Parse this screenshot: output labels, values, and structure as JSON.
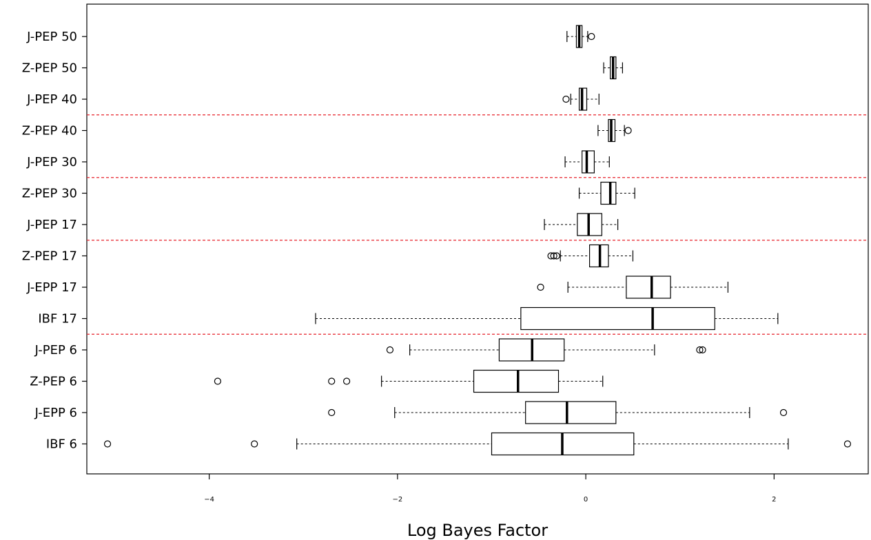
{
  "chart_data": {
    "type": "boxplot",
    "orientation": "horizontal",
    "xlabel": "Log Bayes Factor",
    "xlim": [
      -5.3,
      3.0
    ],
    "xticks": [
      -4,
      -2,
      0,
      2
    ],
    "xtick_labels": [
      "−4",
      "−2",
      "0",
      "2"
    ],
    "separator_color": "#e8202a",
    "separators_after": [
      "J-PEP 6",
      "Z-PEP 17",
      "Z-PEP 30",
      "Z-PEP 40"
    ],
    "categories": [
      "J-PEP 50",
      "Z-PEP 50",
      "J-PEP 40",
      "Z-PEP 40",
      "J-PEP 30",
      "Z-PEP 30",
      "J-PEP 17",
      "Z-PEP 17",
      "J-EPP 17",
      "IBF 17",
      "J-PEP 6",
      "Z-PEP 6",
      "J-EPP 6",
      "IBF 6"
    ],
    "boxes": [
      {
        "label": "J-PEP 50",
        "whisker_low": -0.2,
        "q1": -0.1,
        "median": -0.07,
        "q3": -0.04,
        "whisker_high": 0.02,
        "outliers": [
          0.06
        ]
      },
      {
        "label": "Z-PEP 50",
        "whisker_low": 0.19,
        "q1": 0.26,
        "median": 0.29,
        "q3": 0.32,
        "whisker_high": 0.39,
        "outliers": []
      },
      {
        "label": "J-PEP 40",
        "whisker_low": -0.16,
        "q1": -0.07,
        "median": -0.04,
        "q3": 0.01,
        "whisker_high": 0.14,
        "outliers": [
          -0.21
        ]
      },
      {
        "label": "Z-PEP 40",
        "whisker_low": 0.13,
        "q1": 0.24,
        "median": 0.27,
        "q3": 0.31,
        "whisker_high": 0.41,
        "outliers": [
          0.45
        ]
      },
      {
        "label": "J-PEP 30",
        "whisker_low": -0.22,
        "q1": -0.04,
        "median": 0.01,
        "q3": 0.09,
        "whisker_high": 0.25,
        "outliers": []
      },
      {
        "label": "Z-PEP 30",
        "whisker_low": -0.07,
        "q1": 0.16,
        "median": 0.26,
        "q3": 0.32,
        "whisker_high": 0.52,
        "outliers": []
      },
      {
        "label": "J-PEP 17",
        "whisker_low": -0.44,
        "q1": -0.09,
        "median": 0.03,
        "q3": 0.17,
        "whisker_high": 0.34,
        "outliers": []
      },
      {
        "label": "Z-PEP 17",
        "whisker_low": -0.27,
        "q1": 0.04,
        "median": 0.15,
        "q3": 0.24,
        "whisker_high": 0.5,
        "outliers": [
          -0.37,
          -0.34,
          -0.31
        ]
      },
      {
        "label": "J-EPP 17",
        "whisker_low": -0.19,
        "q1": 0.43,
        "median": 0.7,
        "q3": 0.9,
        "whisker_high": 1.51,
        "outliers": [
          -0.48
        ]
      },
      {
        "label": "IBF 17",
        "whisker_low": -2.87,
        "q1": -0.69,
        "median": 0.71,
        "q3": 1.37,
        "whisker_high": 2.04,
        "outliers": []
      },
      {
        "label": "J-PEP 6",
        "whisker_low": -1.87,
        "q1": -0.92,
        "median": -0.57,
        "q3": -0.23,
        "whisker_high": 0.73,
        "outliers": [
          -2.08,
          1.21,
          1.24
        ]
      },
      {
        "label": "Z-PEP 6",
        "whisker_low": -2.17,
        "q1": -1.19,
        "median": -0.72,
        "q3": -0.29,
        "whisker_high": 0.18,
        "outliers": [
          -3.91,
          -2.7,
          -2.54
        ]
      },
      {
        "label": "J-EPP 6",
        "whisker_low": -2.03,
        "q1": -0.64,
        "median": -0.2,
        "q3": 0.32,
        "whisker_high": 1.74,
        "outliers": [
          -2.7,
          2.1
        ]
      },
      {
        "label": "IBF 6",
        "whisker_low": -3.07,
        "q1": -1.0,
        "median": -0.25,
        "q3": 0.51,
        "whisker_high": 2.15,
        "outliers": [
          -5.08,
          -3.52,
          2.78
        ]
      }
    ]
  }
}
